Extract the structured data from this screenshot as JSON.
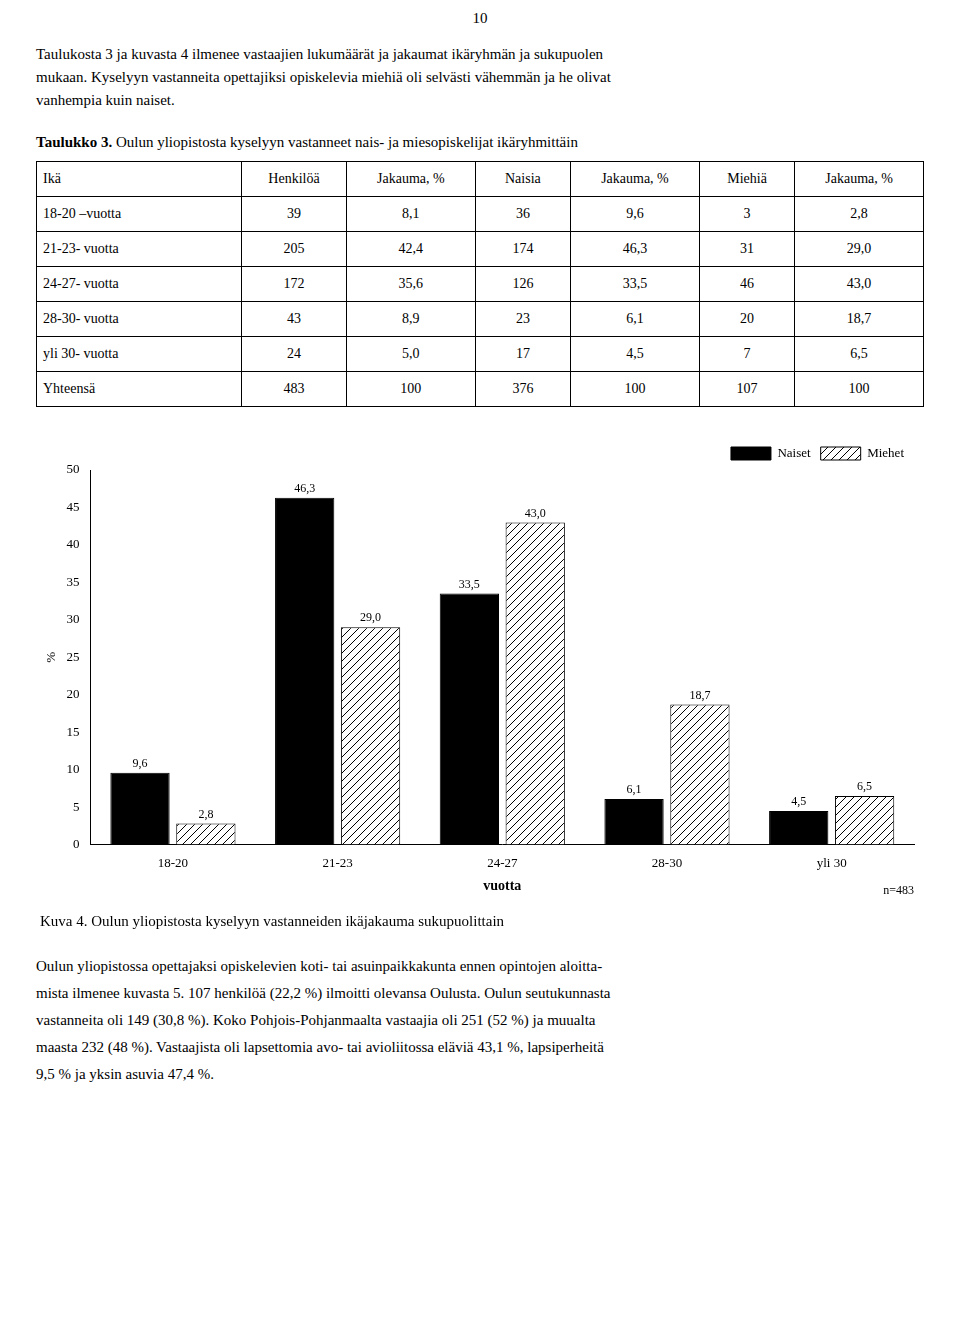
{
  "page_number": "10",
  "intro_text": [
    "Taulukosta 3 ja kuvasta 4 ilmenee vastaajien lukumäärät ja jakaumat ikäryhmän ja sukupuolen",
    "mukaan. Kyselyyn vastanneita opettajiksi opiskelevia miehiä oli selvästi vähemmän ja he olivat",
    "vanhempia kuin naiset."
  ],
  "table_title_bold": "Taulukko 3.",
  "table_title": " Oulun yliopistosta kyselyyn vastanneet nais- ja miesopiskelijat ikäryhmittäin",
  "table": {
    "headers": [
      "Ikä",
      "Henkilöä",
      "Jakauma, %",
      "Naisia",
      "Jakauma, %",
      "Miehiä",
      "Jakauma, %"
    ],
    "rows": [
      [
        "18-20 –vuotta",
        "39",
        "8,1",
        "36",
        "9,6",
        "3",
        "2,8"
      ],
      [
        "21-23- vuotta",
        "205",
        "42,4",
        "174",
        "46,3",
        "31",
        "29,0"
      ],
      [
        "24-27- vuotta",
        "172",
        "35,6",
        "126",
        "33,5",
        "46",
        "43,0"
      ],
      [
        "28-30- vuotta",
        "43",
        "8,9",
        "23",
        "6,1",
        "20",
        "18,7"
      ],
      [
        "yli 30- vuotta",
        "24",
        "5,0",
        "17",
        "4,5",
        "7",
        "6,5"
      ],
      [
        "Yhteensä",
        "483",
        "100",
        "376",
        "100",
        "107",
        "100"
      ]
    ]
  },
  "chart_data": {
    "type": "bar",
    "title": "Kuva 4. Oulun yliopistosta kyselyyn vastanneiden ikäjakauma sukupuolittain",
    "xlabel": "vuotta",
    "ylabel": "%",
    "categories": [
      "18-20",
      "21-23",
      "24-27",
      "28-30",
      "yli 30"
    ],
    "series": [
      {
        "name": "Naiset",
        "color": "#000000",
        "values": [
          9.6,
          46.3,
          33.5,
          6.1,
          4.5
        ],
        "value_labels": [
          "9,6",
          "46,3",
          "33,5",
          "6,1",
          "4,5"
        ]
      },
      {
        "name": "Miehet",
        "color": "#ffffff",
        "values": [
          2.8,
          29.0,
          43.0,
          18.7,
          6.5
        ],
        "value_labels": [
          "2,8",
          "29,0",
          "43,0",
          "18,7",
          "6,5"
        ]
      }
    ],
    "ylim": [
      0,
      50
    ],
    "yticks": [
      0,
      5,
      10,
      15,
      20,
      25,
      30,
      35,
      40,
      45,
      50
    ],
    "grid": false,
    "legend": "upper right",
    "data_labels": true,
    "annotations": [
      "n=483"
    ]
  },
  "body_text": [
    "Oulun yliopistossa opettajaksi opiskelevien koti- tai asuinpaikkakunta ennen opintojen aloitta-",
    "mista ilmenee kuvasta 5. 107 henkilöä (22,2 %) ilmoitti olevansa Oulusta. Oulun seutukunnasta",
    "vastanneita oli 149 (30,8 %). Koko Pohjois-Pohjanmaalta vastaajia oli 251 (52 %) ja muualta",
    "maasta 232 (48 %). Vastaajista oli lapsettomia avo- tai avioliitossa eläviä 43,1 %, lapsiperheitä",
    "9,5 % ja yksin asuvia 47,4 %."
  ]
}
